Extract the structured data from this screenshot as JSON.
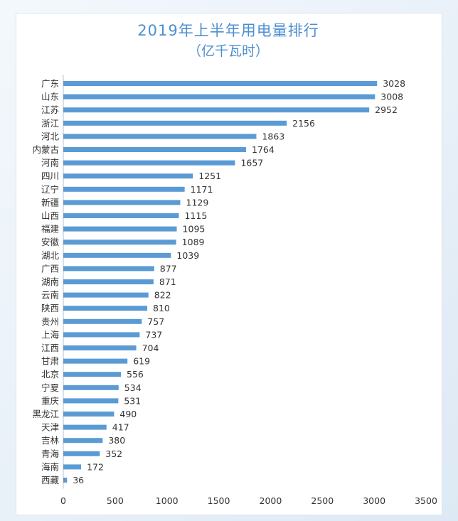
{
  "chart_data": {
    "type": "bar",
    "orientation": "horizontal",
    "title": "2019年上半年用电量排行",
    "subtitle": "（亿千瓦时）",
    "categories": [
      "广东",
      "山东",
      "江苏",
      "浙江",
      "河北",
      "内蒙古",
      "河南",
      "四川",
      "辽宁",
      "新疆",
      "山西",
      "福建",
      "安徽",
      "湖北",
      "广西",
      "湖南",
      "云南",
      "陕西",
      "贵州",
      "上海",
      "江西",
      "甘肃",
      "北京",
      "宁夏",
      "重庆",
      "黑龙江",
      "天津",
      "吉林",
      "青海",
      "海南",
      "西藏"
    ],
    "values": [
      3028,
      3008,
      2952,
      2156,
      1863,
      1764,
      1657,
      1251,
      1171,
      1129,
      1115,
      1095,
      1089,
      1039,
      877,
      871,
      822,
      810,
      757,
      737,
      704,
      619,
      556,
      534,
      531,
      490,
      417,
      380,
      352,
      172,
      36
    ],
    "xlim": [
      0,
      3500
    ],
    "xticks": [
      "0",
      "500",
      "1000",
      "1500",
      "2000",
      "2500",
      "3000",
      "3500"
    ],
    "grid": false,
    "legend": "none",
    "bar_color": "#5b9bd5"
  }
}
